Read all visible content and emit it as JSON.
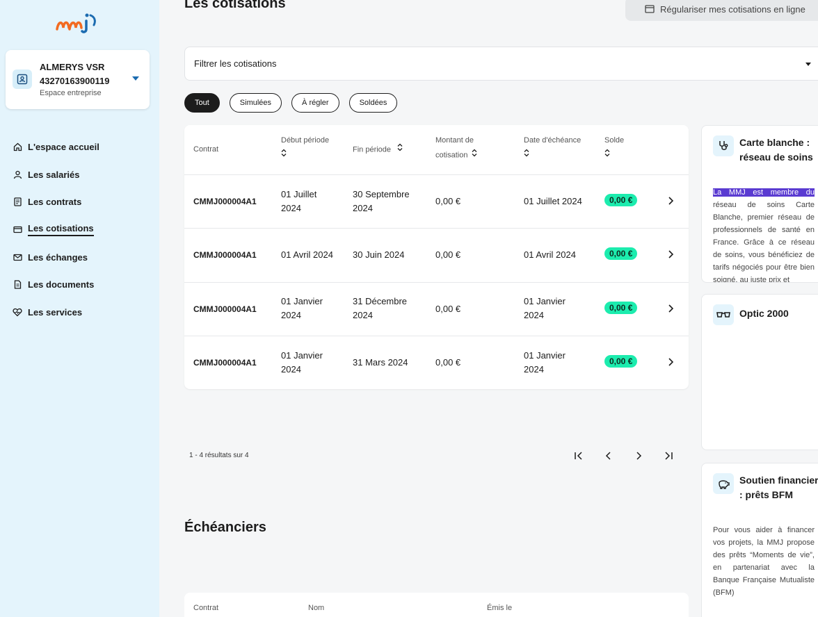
{
  "sidebar": {
    "logo_text": "mmj",
    "account": {
      "name": "ALMERYS VSR",
      "id": "43270163900119",
      "space": "Espace entreprise"
    },
    "nav": [
      {
        "label": "L'espace accueil",
        "icon": "home-icon"
      },
      {
        "label": "Les salariés",
        "icon": "user-icon"
      },
      {
        "label": "Les contrats",
        "icon": "contract-icon"
      },
      {
        "label": "Les cotisations",
        "icon": "card-icon",
        "active": true
      },
      {
        "label": "Les échanges",
        "icon": "mail-icon"
      },
      {
        "label": "Les documents",
        "icon": "document-icon"
      },
      {
        "label": "Les services",
        "icon": "heart-icon"
      }
    ]
  },
  "header": {
    "title": "Les cotisations",
    "regul_button": "Régulariser mes cotisations en ligne"
  },
  "filter": {
    "label": "Filtrer les cotisations"
  },
  "chips": [
    "Tout",
    "Simulées",
    "À régler",
    "Soldées"
  ],
  "table": {
    "headers": {
      "contrat": "Contrat",
      "debut": "Début période",
      "fin": "Fin période",
      "montant_1": "Montant de",
      "montant_2": "cotisation",
      "echeance": "Date d'échéance",
      "solde": "Solde"
    },
    "rows": [
      {
        "contrat": "CMMJ000004A1",
        "debut_1": "01 Juillet",
        "debut_2": "2024",
        "fin_1": "30 Septembre",
        "fin_2": "2024",
        "montant": "0,00 €",
        "echeance_1": "01 Juillet 2024",
        "echeance_2": "",
        "solde": "0,00 €"
      },
      {
        "contrat": "CMMJ000004A1",
        "debut_1": "01 Avril 2024",
        "debut_2": "",
        "fin_1": "30 Juin 2024",
        "fin_2": "",
        "montant": "0,00 €",
        "echeance_1": "01 Avril 2024",
        "echeance_2": "",
        "solde": "0,00 €"
      },
      {
        "contrat": "CMMJ000004A1",
        "debut_1": "01 Janvier",
        "debut_2": "2024",
        "fin_1": "31 Décembre",
        "fin_2": "2024",
        "montant": "0,00 €",
        "echeance_1": "01 Janvier",
        "echeance_2": "2024",
        "solde": "0,00 €"
      },
      {
        "contrat": "CMMJ000004A1",
        "debut_1": "01 Janvier",
        "debut_2": "2024",
        "fin_1": "31 Mars 2024",
        "fin_2": "",
        "montant": "0,00 €",
        "echeance_1": "01 Janvier",
        "echeance_2": "2024",
        "solde": "0,00 €"
      }
    ]
  },
  "pagination": {
    "summary": "1 - 4 résultats sur 4"
  },
  "echeanciers": {
    "title": "Échéanciers",
    "headers": {
      "contrat": "Contrat",
      "nom": "Nom",
      "emis": "Émis le"
    }
  },
  "services": [
    {
      "title": "Carte blanche : réseau de soins",
      "icon": "stethoscope-icon",
      "text_highlight": "La MMJ est membre du",
      "text": " réseau de soins Carte Blanche, premier réseau de professionnels de santé en France. Grâce à ce réseau de soins, vous bénéficiez de tarifs négociés pour être bien soigné, au juste prix et"
    },
    {
      "title": "Optic 2000",
      "icon": "glasses-icon",
      "text": ""
    },
    {
      "title": "Soutien financier : prêts BFM",
      "icon": "piggy-bank-icon",
      "text": "Pour vous aider à financer vos projets, la MMJ propose des prêts “Moments de vie”, en partenariat avec la Banque Française Mutualiste (BFM)"
    }
  ],
  "colors": {
    "sidebar_bg": "#e4f4fc",
    "badge": "#1cecae",
    "highlight": "#5a3bd1",
    "accent": "#1b6bb0"
  }
}
